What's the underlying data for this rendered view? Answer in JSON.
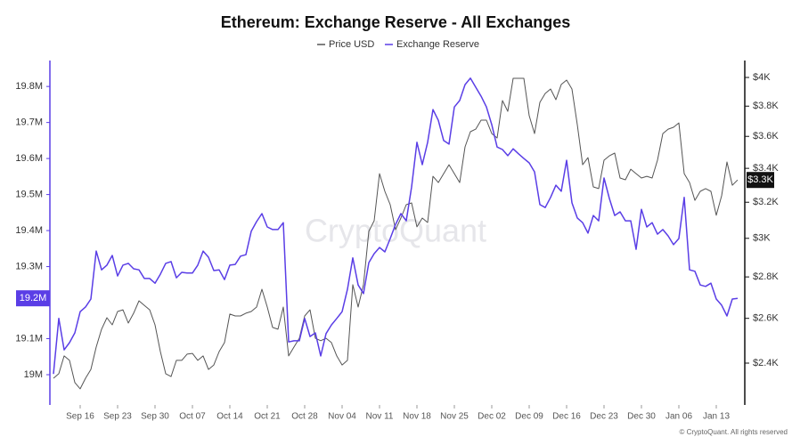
{
  "chart_data": {
    "type": "line",
    "title": "Ethereum: Exchange Reserve - All Exchanges",
    "watermark": "CryptoQuant",
    "credit": "© CryptoQuant. All rights reserved",
    "grid": false,
    "y2scale": "log",
    "categories": [
      null,
      null,
      null,
      null,
      null,
      "Sep 16",
      null,
      null,
      null,
      null,
      null,
      null,
      "Sep 23",
      null,
      null,
      null,
      null,
      null,
      null,
      "Sep 30",
      null,
      null,
      null,
      null,
      null,
      null,
      "Oct 07",
      null,
      null,
      null,
      null,
      null,
      null,
      "Oct 14",
      null,
      null,
      null,
      null,
      null,
      null,
      "Oct 21",
      null,
      null,
      null,
      null,
      null,
      null,
      "Oct 28",
      null,
      null,
      null,
      null,
      null,
      null,
      "Nov 04",
      null,
      null,
      null,
      null,
      null,
      null,
      "Nov 11",
      null,
      null,
      null,
      null,
      null,
      null,
      "Nov 18",
      null,
      null,
      null,
      null,
      null,
      null,
      "Nov 25",
      null,
      null,
      null,
      null,
      null,
      null,
      "Dec 02",
      null,
      null,
      null,
      null,
      null,
      null,
      "Dec 09",
      null,
      null,
      null,
      null,
      null,
      null,
      "Dec 16",
      null,
      null,
      null,
      null,
      null,
      null,
      "Dec 23",
      null,
      null,
      null,
      null,
      null,
      null,
      "Dec 30",
      null,
      null,
      null,
      null,
      null,
      null,
      "Jan 06",
      null,
      null,
      null,
      null,
      null,
      null,
      "Jan 13",
      null,
      null,
      null,
      null
    ],
    "ylim": [
      18.916,
      19.872
    ],
    "yticks": [
      {
        "value": 19,
        "label": "19M"
      },
      {
        "value": 19.1,
        "label": "19.1M"
      },
      {
        "value": 19.2,
        "label": "19.2M"
      },
      {
        "value": 19.3,
        "label": "19.3M"
      },
      {
        "value": 19.4,
        "label": "19.4M"
      },
      {
        "value": 19.5,
        "label": "19.5M"
      },
      {
        "value": 19.6,
        "label": "19.6M"
      },
      {
        "value": 19.7,
        "label": "19.7M"
      },
      {
        "value": 19.8,
        "label": "19.8M"
      }
    ],
    "y2lim": [
      2.227,
      4.123
    ],
    "y2ticks": [
      {
        "value": 2.4,
        "label": "$2.4K"
      },
      {
        "value": 2.6,
        "label": "$2.6K"
      },
      {
        "value": 2.8,
        "label": "$2.8K"
      },
      {
        "value": 3,
        "label": "$3K"
      },
      {
        "value": 3.2,
        "label": "$3.2K"
      },
      {
        "value": 3.4,
        "label": "$3.4K"
      },
      {
        "value": 3.6,
        "label": "$3.6K"
      },
      {
        "value": 3.8,
        "label": "$3.8K"
      },
      {
        "value": 4,
        "label": "$4K"
      }
    ],
    "series": [
      {
        "name": "Price USD",
        "color": "#555555",
        "axis": "y2",
        "last_label": "$3.3K",
        "values": [
          2.336,
          2.355,
          2.431,
          2.412,
          2.318,
          2.292,
          2.336,
          2.373,
          2.47,
          2.55,
          2.603,
          2.57,
          2.632,
          2.64,
          2.578,
          2.624,
          2.683,
          2.661,
          2.64,
          2.57,
          2.45,
          2.355,
          2.343,
          2.412,
          2.412,
          2.439,
          2.442,
          2.412,
          2.431,
          2.373,
          2.392,
          2.45,
          2.49,
          2.62,
          2.611,
          2.611,
          2.624,
          2.632,
          2.653,
          2.739,
          2.653,
          2.558,
          2.55,
          2.653,
          2.431,
          2.47,
          2.509,
          2.611,
          2.64,
          2.509,
          2.498,
          2.509,
          2.49,
          2.431,
          2.392,
          2.412,
          2.761,
          2.653,
          2.761,
          3.038,
          3.096,
          3.368,
          3.263,
          3.186,
          3.047,
          3.111,
          3.186,
          3.196,
          3.062,
          3.111,
          3.086,
          3.352,
          3.315,
          3.368,
          3.422,
          3.368,
          3.315,
          3.533,
          3.63,
          3.647,
          3.706,
          3.706,
          3.618,
          3.59,
          3.838,
          3.765,
          3.994,
          3.994,
          3.994,
          3.736,
          3.618,
          3.826,
          3.887,
          3.918,
          3.844,
          3.95,
          3.981,
          3.918,
          3.676,
          3.422,
          3.466,
          3.289,
          3.279,
          3.45,
          3.477,
          3.494,
          3.342,
          3.331,
          3.395,
          3.368,
          3.342,
          3.352,
          3.342,
          3.45,
          3.618,
          3.647,
          3.659,
          3.688,
          3.368,
          3.315,
          3.211,
          3.263,
          3.279,
          3.263,
          3.126,
          3.237,
          3.439,
          3.299,
          3.33
        ]
      },
      {
        "name": "Exchange Reserve",
        "color": "#5a3ee6",
        "axis": "y",
        "last_label": "19.2M",
        "values": [
          19.002,
          19.156,
          19.069,
          19.089,
          19.116,
          19.175,
          19.188,
          19.21,
          19.343,
          19.291,
          19.304,
          19.331,
          19.274,
          19.304,
          19.309,
          19.294,
          19.291,
          19.267,
          19.267,
          19.254,
          19.279,
          19.309,
          19.314,
          19.269,
          19.284,
          19.282,
          19.282,
          19.304,
          19.343,
          19.326,
          19.289,
          19.291,
          19.264,
          19.304,
          19.306,
          19.329,
          19.333,
          19.398,
          19.425,
          19.447,
          19.41,
          19.403,
          19.403,
          19.422,
          19.091,
          19.094,
          19.094,
          19.156,
          19.106,
          19.116,
          19.052,
          19.114,
          19.138,
          19.156,
          19.175,
          19.237,
          19.324,
          19.249,
          19.225,
          19.311,
          19.336,
          19.353,
          19.341,
          19.378,
          19.417,
          19.447,
          19.427,
          19.521,
          19.645,
          19.583,
          19.645,
          19.736,
          19.706,
          19.65,
          19.64,
          19.743,
          19.761,
          19.805,
          19.823,
          19.798,
          19.773,
          19.743,
          19.694,
          19.632,
          19.625,
          19.608,
          19.627,
          19.613,
          19.6,
          19.588,
          19.563,
          19.472,
          19.464,
          19.492,
          19.526,
          19.509,
          19.595,
          19.477,
          19.435,
          19.422,
          19.393,
          19.442,
          19.427,
          19.546,
          19.489,
          19.442,
          19.452,
          19.427,
          19.427,
          19.348,
          19.459,
          19.41,
          19.422,
          19.39,
          19.403,
          19.385,
          19.361,
          19.378,
          19.492,
          19.291,
          19.287,
          19.249,
          19.245,
          19.254,
          19.21,
          19.193,
          19.163,
          19.21,
          19.212
        ]
      }
    ]
  }
}
